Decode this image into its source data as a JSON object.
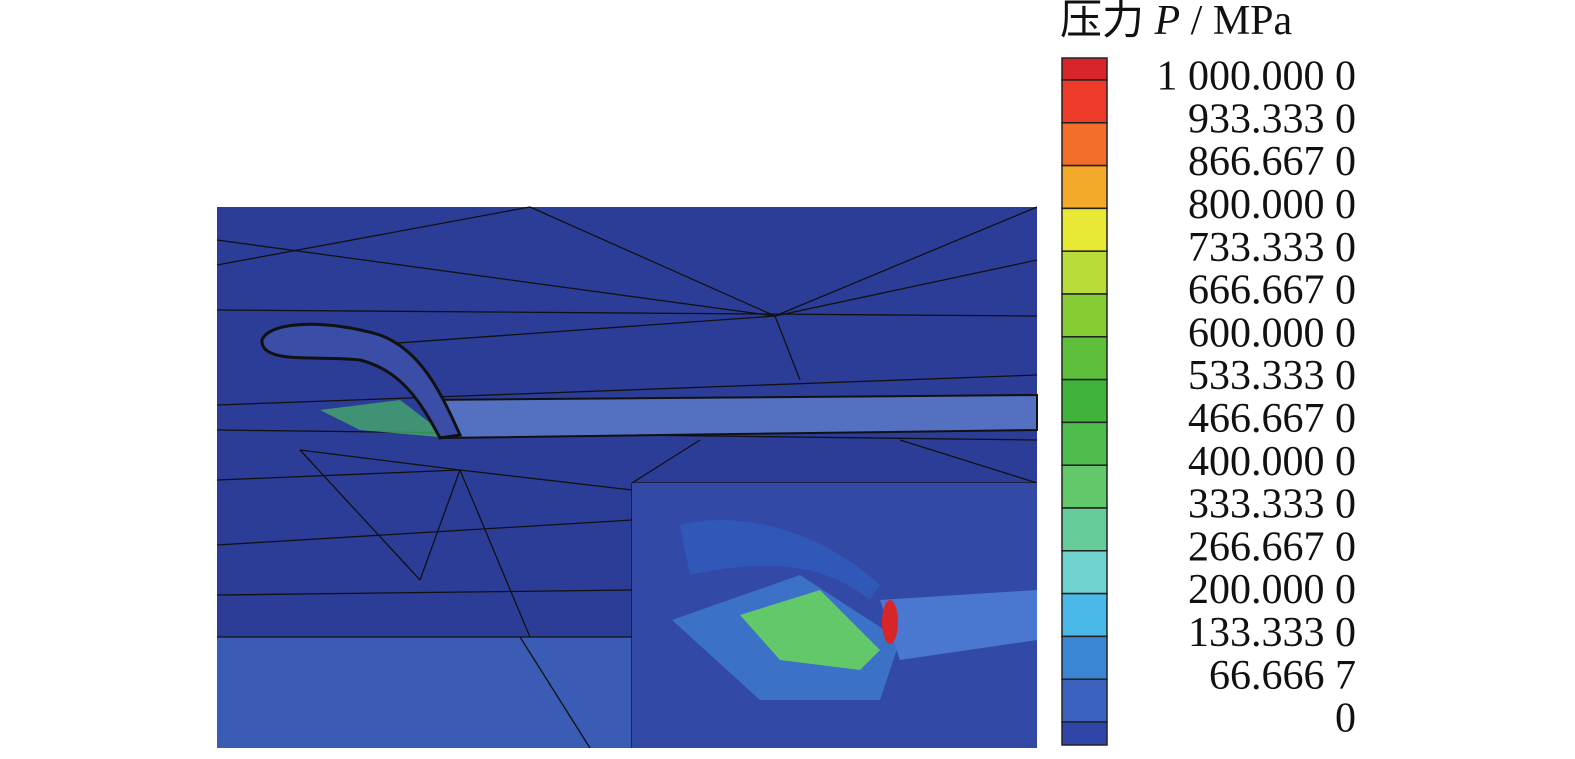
{
  "legend": {
    "title": [
      "压力",
      "P",
      "/ MPa"
    ],
    "labels": [
      "1 000.000 0",
      "933.333 0",
      "866.667 0",
      "800.000 0",
      "733.333 0",
      "666.667 0",
      "600.000 0",
      "533.333 0",
      "466.667 0",
      "400.000 0",
      "333.333 0",
      "266.667 0",
      "200.000 0",
      "133.333 0",
      "66.666 7",
      "0"
    ],
    "colors": [
      "#d8252a",
      "#ee3a28",
      "#f26e2a",
      "#f3a92a",
      "#e8e935",
      "#b9dc3a",
      "#86cc34",
      "#5dbf3a",
      "#3fb33a",
      "#4fbd4e",
      "#63c86a",
      "#66cc9a",
      "#6fd4d0",
      "#4ab8e8",
      "#3a86d4",
      "#3a62be",
      "#2f46a8"
    ]
  }
}
